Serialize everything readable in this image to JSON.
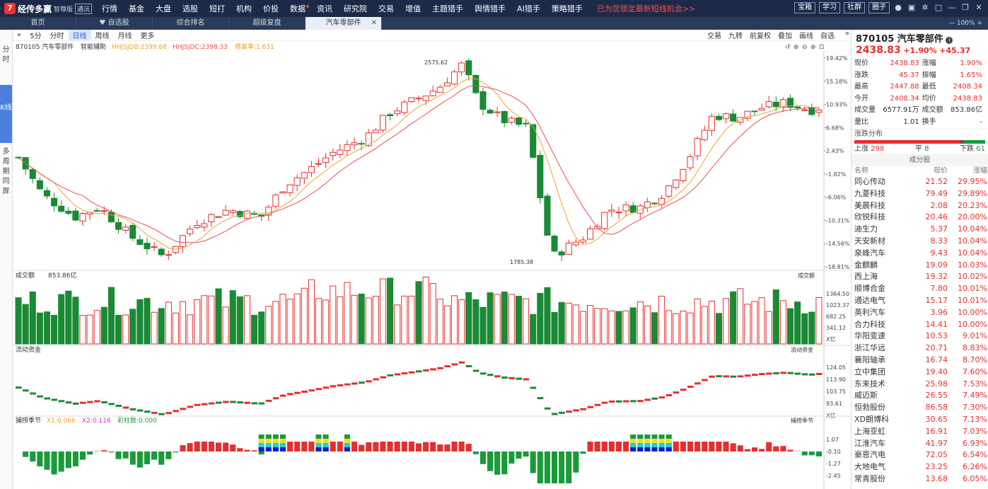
{
  "app": {
    "logo": "经传多赢",
    "edition": "智尊版",
    "badge": "通沅"
  },
  "menu": [
    "行情",
    "基金",
    "大盘",
    "选股",
    "短打",
    "机构",
    "价投",
    "数据",
    "资讯",
    "研究院",
    "交易",
    "增值",
    "主题猎手",
    "舆情猎手",
    "AI猎手",
    "策略猎手"
  ],
  "promo": "已为您锁定最新短线机会>>",
  "top_buttons": [
    "宝箱",
    "学习",
    "社群",
    "圈子"
  ],
  "zoom": "100%",
  "tabs": [
    "首页",
    "自选股",
    "综合排名",
    "超级复盘",
    "汽车零部件"
  ],
  "left_nav": [
    "分时",
    "K线",
    "多周期同屏"
  ],
  "toolbar": {
    "periods": [
      "5分",
      "分时",
      "日线",
      "周线",
      "月线",
      "更多"
    ],
    "active": "日线",
    "right": [
      "交易",
      "九转",
      "前复权",
      "叠加",
      "画线",
      "自选"
    ]
  },
  "chart_header": {
    "name": "870105 汽车零部件",
    "assist": "智能辅助",
    "ind1": "HHJSJDB:2399.68",
    "ind2": "HHJSJDC:2398.33",
    "ind3": "感离率:1.631"
  },
  "price_axis": [
    "19.42%",
    "15.18%",
    "10.93%",
    "6.68%",
    "2.43%",
    "-1.82%",
    "-6.06%",
    "-10.31%",
    "-14.56%",
    "-18.81%"
  ],
  "annotations": {
    "high": "2575.62",
    "low": "1785.38"
  },
  "volume": {
    "title": "成交额",
    "value": "853.86亿",
    "right_label": "成交额",
    "axis": [
      "1364.50",
      "1023.37",
      "682.25",
      "341.12",
      "X亿"
    ]
  },
  "flow": {
    "title": "流动资金",
    "right_label": "流动资金",
    "axis": [
      "124.05",
      "113.90",
      "103.75",
      "93.61",
      "X亿"
    ]
  },
  "catch": {
    "title": "捕捞季节",
    "x1": "X1:0.066",
    "x2": "X2:0.116",
    "color": "彩柱数:0.000",
    "right_label": "捕捞季节",
    "axis": [
      "1.07",
      "-0.10",
      "-1.27",
      "-2.45"
    ]
  },
  "quote": {
    "title": "870105 汽车零部件",
    "price": "2438.83",
    "chg_pct": "+1.90%",
    "chg": "+45.37",
    "rows": [
      [
        "现价",
        "2438.83",
        "涨幅",
        "1.90%"
      ],
      [
        "涨跌",
        "45.37",
        "振幅",
        "1.65%"
      ],
      [
        "最高",
        "2447.88",
        "最低",
        "2408.34"
      ],
      [
        "今开",
        "2408.34",
        "均价",
        "2438.83"
      ],
      [
        "成交量",
        "6577.91万",
        "成交额",
        "853.86亿"
      ],
      [
        "量比",
        "1.01",
        "换手",
        "-"
      ]
    ]
  },
  "breadth": {
    "title": "涨跌分布",
    "up_label": "上涨",
    "up": "298",
    "flat_label": "平",
    "flat": "8",
    "down_label": "下跌",
    "down": "61"
  },
  "components": {
    "title": "成分股",
    "cols": [
      "名称",
      "现价",
      "涨幅"
    ],
    "rows": [
      [
        "同心传动",
        "21.52",
        "29.95%"
      ],
      [
        "九菱科技",
        "79.49",
        "29.89%"
      ],
      [
        "美晨科技",
        "2.08",
        "20.23%"
      ],
      [
        "欣锐科技",
        "20.46",
        "20.00%"
      ],
      [
        "迪生力",
        "5.37",
        "10.04%"
      ],
      [
        "天安新材",
        "8.33",
        "10.04%"
      ],
      [
        "泉峰汽车",
        "9.43",
        "10.04%"
      ],
      [
        "金麒麟",
        "19.09",
        "10.03%"
      ],
      [
        "西上海",
        "19.32",
        "10.02%"
      ],
      [
        "顺博合金",
        "7.80",
        "10.01%"
      ],
      [
        "通达电气",
        "15.17",
        "10.01%"
      ],
      [
        "英利汽车",
        "3.96",
        "10.00%"
      ],
      [
        "合力科技",
        "14.41",
        "10.00%"
      ],
      [
        "华阳变速",
        "10.53",
        "9.01%"
      ],
      [
        "浙江华远",
        "20.71",
        "8.83%"
      ],
      [
        "襄阳轴承",
        "16.74",
        "8.70%"
      ],
      [
        "立中集团",
        "19.40",
        "7.60%"
      ],
      [
        "东来技术",
        "25.98",
        "7.53%"
      ],
      [
        "威迈斯",
        "26.55",
        "7.49%"
      ],
      [
        "恒勃股份",
        "86.58",
        "7.30%"
      ],
      [
        "XD朗博科",
        "30.65",
        "7.13%"
      ],
      [
        "上海亚虹",
        "16.91",
        "7.03%"
      ],
      [
        "江淮汽车",
        "41.97",
        "6.93%"
      ],
      [
        "豪恩汽电",
        "72.05",
        "6.54%"
      ],
      [
        "大地电气",
        "23.25",
        "6.26%"
      ],
      [
        "常青股份",
        "13.68",
        "6.05%"
      ]
    ]
  },
  "colors": {
    "up": "#e62e2e",
    "down": "#1a8a35",
    "ma1": "#f0a030",
    "ma2": "#e65050"
  }
}
